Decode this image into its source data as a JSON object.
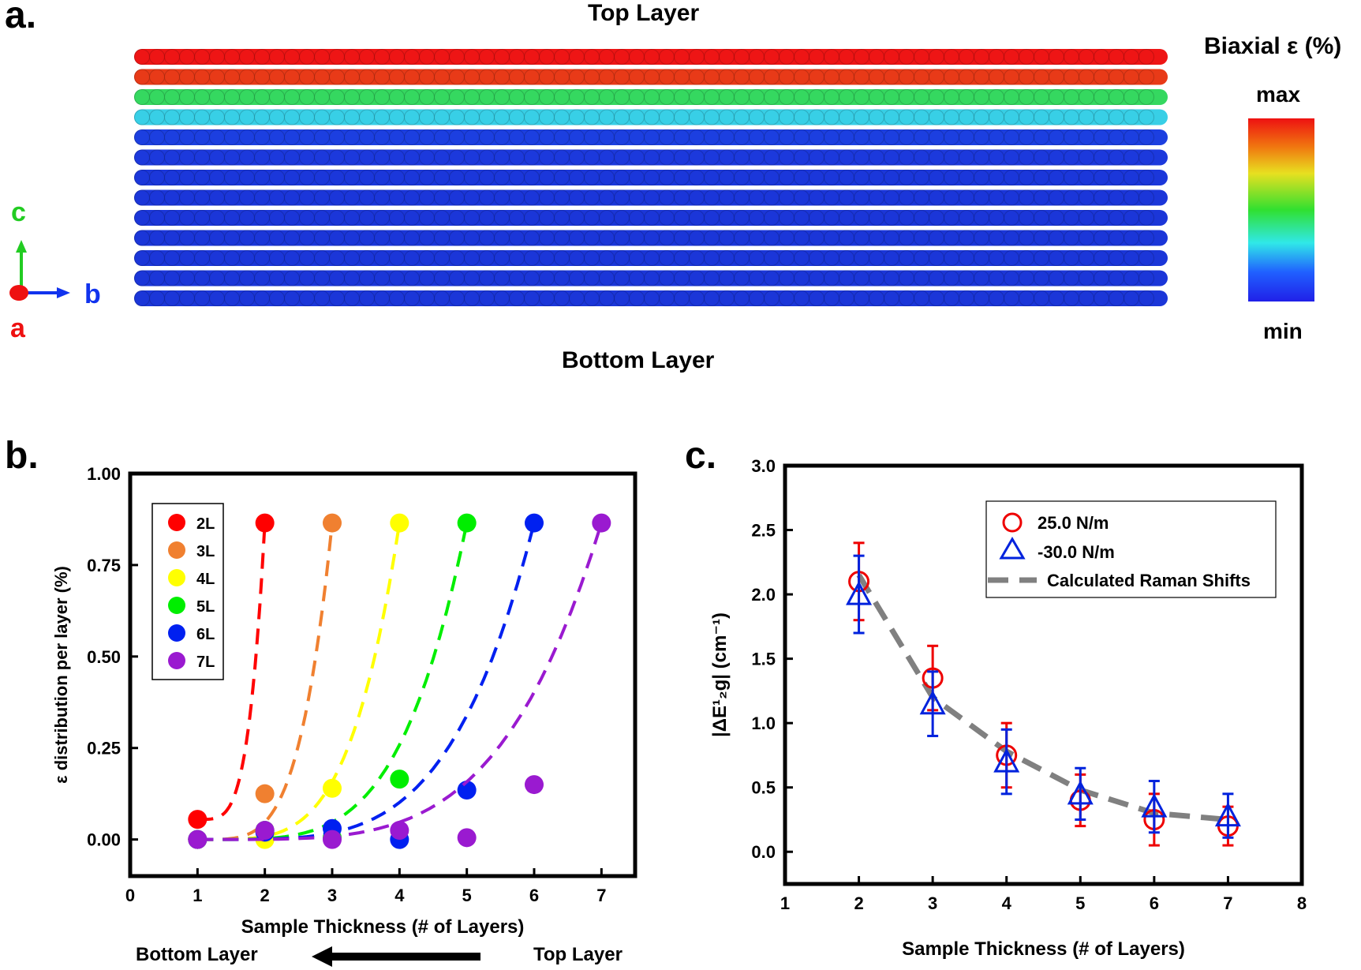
{
  "panel_a": {
    "label": "a.",
    "top_caption": "Top Layer",
    "bottom_caption": "Bottom Layer",
    "colorbar_title": "Biaxial ε (%)",
    "colorbar_max": "max",
    "colorbar_min": "min",
    "axes": {
      "c": "c",
      "b": "b",
      "a": "a"
    },
    "colors": {
      "c_axis": "#22cc22",
      "b_axis": "#1133ee",
      "a_axis": "#ee1111"
    },
    "row_colors": [
      "#ee1515",
      "#e83a18",
      "#35d860",
      "#38cfe6",
      "#1c3fe0",
      "#1c39dc",
      "#1b37da",
      "#1b36d9",
      "#1b36d8",
      "#1b36d8",
      "#1b36d8",
      "#1b36d8",
      "#1b36d8"
    ]
  },
  "panel_b": {
    "label": "b.",
    "footer_left": "Bottom Layer",
    "footer_right": "Top Layer"
  },
  "panel_c": {
    "label": "c."
  },
  "chart_data": [
    {
      "type": "scatter",
      "xlabel": "Sample Thickness (# of Layers)",
      "ylabel": "ε distribution per layer (%)",
      "xlim": [
        0,
        7.5
      ],
      "ylim": [
        -0.1,
        1.0
      ],
      "xticks": [
        0,
        1,
        2,
        3,
        4,
        5,
        6,
        7
      ],
      "yticks": [
        "0.00",
        "0.25",
        "0.50",
        "0.75",
        "1.00"
      ],
      "ytick_values": [
        0,
        0.25,
        0.5,
        0.75,
        1.0
      ],
      "legend_position": "top-left",
      "series": [
        {
          "name": "2L",
          "color": "#ff0000",
          "x": [
            1,
            2
          ],
          "y": [
            0.055,
            0.865
          ]
        },
        {
          "name": "3L",
          "color": "#f08030",
          "x": [
            1,
            2,
            3
          ],
          "y": [
            0.0,
            0.125,
            0.865
          ]
        },
        {
          "name": "4L",
          "color": "#ffff00",
          "x": [
            1,
            2,
            3,
            4
          ],
          "y": [
            0.0,
            0.0,
            0.14,
            0.865
          ]
        },
        {
          "name": "5L",
          "color": "#00ee00",
          "x": [
            1,
            2,
            3,
            4,
            5
          ],
          "y": [
            0.0,
            0.025,
            0.005,
            0.165,
            0.865
          ]
        },
        {
          "name": "6L",
          "color": "#0020f0",
          "x": [
            1,
            2,
            3,
            4,
            5,
            6
          ],
          "y": [
            0.0,
            0.02,
            0.03,
            0.0,
            0.135,
            0.865
          ]
        },
        {
          "name": "7L",
          "color": "#9a1ad0",
          "x": [
            1,
            2,
            3,
            4,
            5,
            6,
            7
          ],
          "y": [
            0.0,
            0.025,
            0.0,
            0.025,
            0.005,
            0.15,
            0.865
          ]
        }
      ]
    },
    {
      "type": "scatter",
      "xlabel": "Sample Thickness (# of Layers)",
      "ylabel": "|ΔE¹₂g| (cm⁻¹)",
      "xlim": [
        1,
        8
      ],
      "ylim": [
        -0.25,
        3.0
      ],
      "xticks": [
        1,
        2,
        3,
        4,
        5,
        6,
        7,
        8
      ],
      "yticks": [
        "0.0",
        "0.5",
        "1.0",
        "1.5",
        "2.0",
        "2.5",
        "3.0"
      ],
      "ytick_values": [
        0,
        0.5,
        1.0,
        1.5,
        2.0,
        2.5,
        3.0
      ],
      "legend_position": "top-right",
      "series": [
        {
          "name": "25.0 N/m",
          "marker": "circle",
          "color": "#ee0000",
          "x": [
            2,
            3,
            4,
            5,
            6,
            7
          ],
          "y": [
            2.1,
            1.35,
            0.75,
            0.4,
            0.25,
            0.2
          ],
          "err": [
            0.3,
            0.25,
            0.25,
            0.2,
            0.2,
            0.15
          ]
        },
        {
          "name": "-30.0 N/m",
          "marker": "triangle",
          "color": "#0022dd",
          "x": [
            2,
            3,
            4,
            5,
            6,
            7
          ],
          "y": [
            2.0,
            1.15,
            0.7,
            0.45,
            0.35,
            0.28
          ],
          "err": [
            0.3,
            0.25,
            0.25,
            0.2,
            0.2,
            0.17
          ]
        },
        {
          "name": "Calculated Raman Shifts",
          "style": "dashed",
          "color": "#808080",
          "x": [
            2,
            3,
            4,
            5,
            6,
            7
          ],
          "y": [
            2.15,
            1.2,
            0.78,
            0.48,
            0.3,
            0.25
          ]
        }
      ]
    }
  ]
}
